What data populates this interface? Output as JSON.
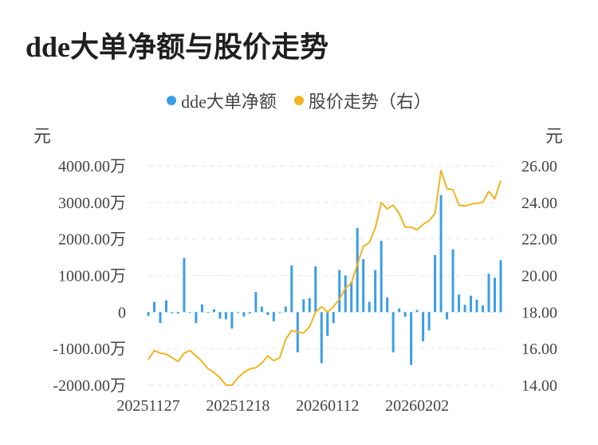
{
  "title": "dde大单净额与股价走势",
  "colors": {
    "bar": "#3a9ee6",
    "line": "#f3b320",
    "grid": "#e6e6e6"
  },
  "chart_data": {
    "type": "bar+line",
    "title": "dde大单净额与股价走势",
    "legend": [
      {
        "name": "dde大单净额",
        "color": "#3a9ee6",
        "marker": "dot"
      },
      {
        "name": "股价走势（右）",
        "color": "#f3b320",
        "marker": "dot"
      }
    ],
    "left_axis": {
      "unit": "元",
      "ylim": [
        -2000,
        4000
      ],
      "ticks": [
        4000,
        3000,
        2000,
        1000,
        0,
        -1000,
        -2000
      ],
      "tick_labels": [
        "4000.00万",
        "3000.00万",
        "2000.00万",
        "1000.00万",
        "0",
        "-1000.00万",
        "-2000.00万"
      ]
    },
    "right_axis": {
      "unit": "元",
      "ylim": [
        14,
        26
      ],
      "ticks": [
        26,
        24,
        22,
        20,
        18,
        16,
        14
      ],
      "tick_labels": [
        "26.00",
        "24.00",
        "22.00",
        "20.00",
        "18.00",
        "16.00",
        "14.00"
      ]
    },
    "x_tick_labels": [
      {
        "label": "20251127",
        "index": 0
      },
      {
        "label": "20251218",
        "index": 15
      },
      {
        "label": "20260112",
        "index": 30
      },
      {
        "label": "20260202",
        "index": 45
      }
    ],
    "grid": "horizontal dashed",
    "series": [
      {
        "name": "dde大单净额",
        "type": "bar",
        "values": [
          -100,
          280,
          -300,
          320,
          -30,
          -40,
          1480,
          -20,
          -300,
          210,
          -10,
          80,
          -180,
          -200,
          -450,
          -20,
          -120,
          -40,
          550,
          150,
          -80,
          -250,
          -20,
          150,
          1280,
          -1100,
          350,
          380,
          1250,
          -1400,
          -650,
          -300,
          1150,
          1000,
          820,
          2300,
          1450,
          280,
          1150,
          1950,
          400,
          -1100,
          100,
          -130,
          -1450,
          60,
          -800,
          -500,
          1560,
          3200,
          -200,
          1720,
          480,
          200,
          450,
          340,
          180,
          1050,
          940,
          1420
        ]
      },
      {
        "name": "股价走势（右）",
        "type": "line",
        "values": [
          15.4,
          15.9,
          15.75,
          15.7,
          15.5,
          15.3,
          15.75,
          15.9,
          15.6,
          15.3,
          14.9,
          14.7,
          14.4,
          14.0,
          14.0,
          14.4,
          14.7,
          14.9,
          14.95,
          15.2,
          15.6,
          15.35,
          15.5,
          16.5,
          17.0,
          16.9,
          16.85,
          17.2,
          18.0,
          18.3,
          18.0,
          18.3,
          18.7,
          19.3,
          19.6,
          20.6,
          21.6,
          21.8,
          22.6,
          24.0,
          23.65,
          23.85,
          23.4,
          22.65,
          22.65,
          22.5,
          22.8,
          23.0,
          23.4,
          25.75,
          24.75,
          24.7,
          23.85,
          23.8,
          23.9,
          23.95,
          24.0,
          24.6,
          24.2,
          25.2
        ]
      }
    ]
  }
}
